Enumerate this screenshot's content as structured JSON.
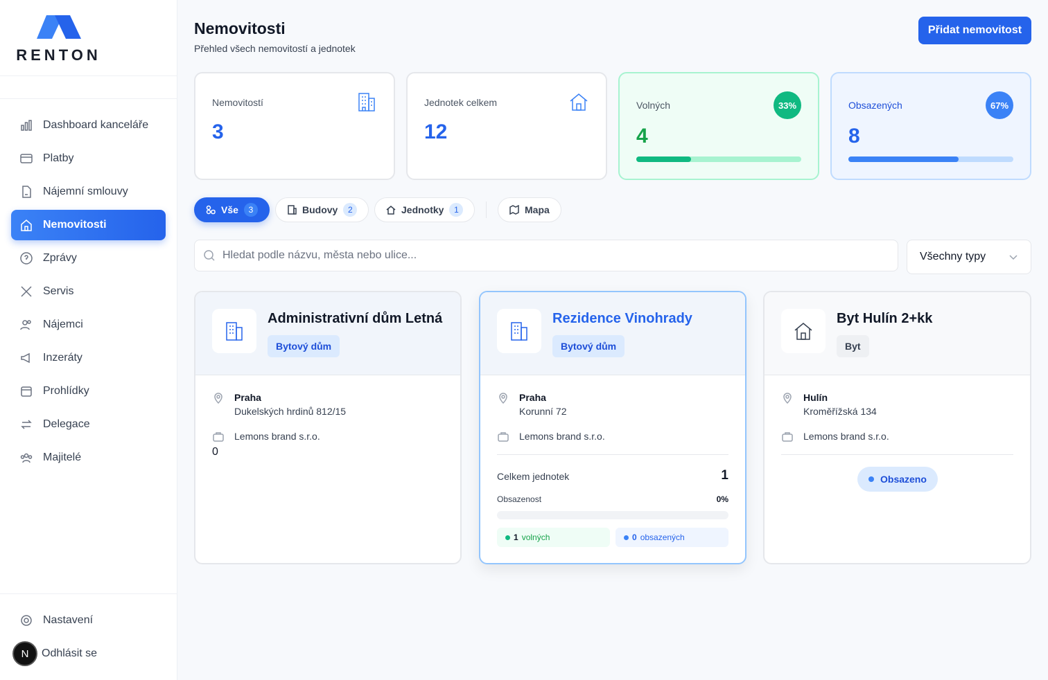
{
  "brand": {
    "name": "RENTON"
  },
  "sidebar": {
    "items": [
      {
        "label": "Dashboard kanceláře",
        "icon": "bar-chart-icon"
      },
      {
        "label": "Platby",
        "icon": "credit-card-icon"
      },
      {
        "label": "Nájemní smlouvy",
        "icon": "document-icon"
      },
      {
        "label": "Nemovitosti",
        "icon": "home-icon",
        "active": true
      },
      {
        "label": "Zprávy",
        "icon": "help-circle-icon"
      },
      {
        "label": "Servis",
        "icon": "tools-icon"
      },
      {
        "label": "Nájemci",
        "icon": "users-icon"
      },
      {
        "label": "Inzeráty",
        "icon": "megaphone-icon"
      },
      {
        "label": "Prohlídky",
        "icon": "calendar-icon"
      },
      {
        "label": "Delegace",
        "icon": "arrows-icon"
      },
      {
        "label": "Majitelé",
        "icon": "group-icon"
      }
    ],
    "footer": {
      "settings": "Nastavení",
      "logout": "Odhlásit se",
      "avatar": "N"
    }
  },
  "header": {
    "title": "Nemovitosti",
    "subtitle": "Přehled všech nemovitostí a jednotek",
    "add_button": "Přidat nemovitost"
  },
  "stats": [
    {
      "label": "Nemovitostí",
      "value": "3",
      "icon": "building-icon"
    },
    {
      "label": "Jednotek celkem",
      "value": "12",
      "icon": "home-icon"
    },
    {
      "label": "Volných",
      "value": "4",
      "percent": "33%",
      "fill": 33,
      "color": "#10b981"
    },
    {
      "label": "Obsazených",
      "value": "8",
      "percent": "67%",
      "fill": 67,
      "color": "#3b82f6"
    }
  ],
  "tabs": [
    {
      "label": "Vše",
      "count": "3",
      "active": true
    },
    {
      "label": "Budovy",
      "count": "2"
    },
    {
      "label": "Jednotky",
      "count": "1"
    },
    {
      "label": "Mapa"
    }
  ],
  "search": {
    "placeholder": "Hledat podle názvu, města nebo ulice...",
    "value": ""
  },
  "type_filter": {
    "selected": "Všechny typy"
  },
  "properties": [
    {
      "title": "Administrativní dům Letná",
      "type": "Bytový dům",
      "city": "Praha",
      "street": "Dukelských hrdinů 812/15",
      "owner": "Lemons brand s.r.o.",
      "extra": "0"
    },
    {
      "title": "Rezidence Vinohrady",
      "type": "Bytový dům",
      "city": "Praha",
      "street": "Korunní 72",
      "owner": "Lemons brand s.r.o.",
      "units_label": "Celkem jednotek",
      "units": "1",
      "occupancy_label": "Obsazenost",
      "occupancy": "0%",
      "free_count": "1",
      "free_label": "volných",
      "occupied_count": "0",
      "occupied_label": "obsazených"
    },
    {
      "title": "Byt Hulín 2+kk",
      "type": "Byt",
      "city": "Hulín",
      "street": "Kroměřížská 134",
      "owner": "Lemons brand s.r.o.",
      "status": "Obsazeno"
    }
  ]
}
